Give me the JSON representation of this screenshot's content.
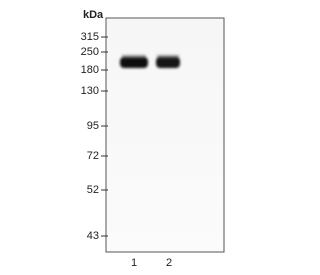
{
  "axis_title": "kDa",
  "markers": [
    "315",
    "250",
    "180",
    "130",
    "95",
    "72",
    "52",
    "43"
  ],
  "lanes": [
    "1",
    "2"
  ]
}
